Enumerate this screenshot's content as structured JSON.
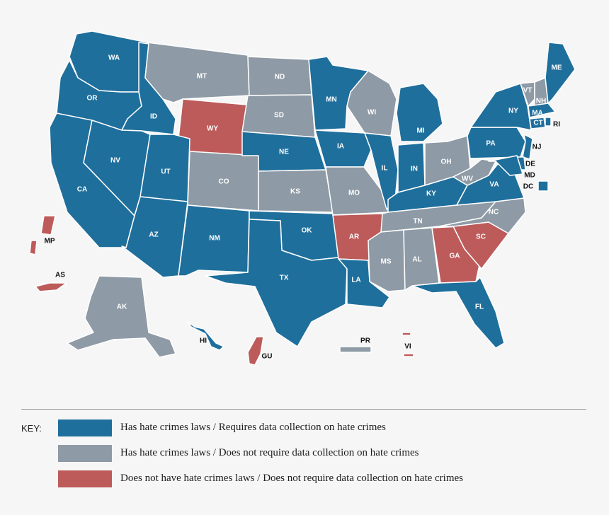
{
  "colors": {
    "blue": "#1f6f9c",
    "gray": "#8e9aa5",
    "red": "#bd5b5b"
  },
  "states": [
    {
      "code": "WA",
      "cat": "blue"
    },
    {
      "code": "OR",
      "cat": "blue"
    },
    {
      "code": "CA",
      "cat": "blue"
    },
    {
      "code": "ID",
      "cat": "blue"
    },
    {
      "code": "NV",
      "cat": "blue"
    },
    {
      "code": "MT",
      "cat": "gray"
    },
    {
      "code": "WY",
      "cat": "red"
    },
    {
      "code": "UT",
      "cat": "blue"
    },
    {
      "code": "AZ",
      "cat": "blue"
    },
    {
      "code": "CO",
      "cat": "gray"
    },
    {
      "code": "NM",
      "cat": "blue"
    },
    {
      "code": "ND",
      "cat": "gray"
    },
    {
      "code": "SD",
      "cat": "gray"
    },
    {
      "code": "NE",
      "cat": "blue"
    },
    {
      "code": "KS",
      "cat": "gray"
    },
    {
      "code": "OK",
      "cat": "blue"
    },
    {
      "code": "TX",
      "cat": "blue"
    },
    {
      "code": "MN",
      "cat": "blue"
    },
    {
      "code": "IA",
      "cat": "blue"
    },
    {
      "code": "MO",
      "cat": "gray"
    },
    {
      "code": "AR",
      "cat": "red"
    },
    {
      "code": "LA",
      "cat": "blue"
    },
    {
      "code": "WI",
      "cat": "gray"
    },
    {
      "code": "IL",
      "cat": "blue"
    },
    {
      "code": "MI",
      "cat": "blue"
    },
    {
      "code": "IN",
      "cat": "blue"
    },
    {
      "code": "OH",
      "cat": "gray"
    },
    {
      "code": "KY",
      "cat": "blue"
    },
    {
      "code": "TN",
      "cat": "gray"
    },
    {
      "code": "MS",
      "cat": "gray"
    },
    {
      "code": "AL",
      "cat": "gray"
    },
    {
      "code": "GA",
      "cat": "red"
    },
    {
      "code": "FL",
      "cat": "blue"
    },
    {
      "code": "SC",
      "cat": "red"
    },
    {
      "code": "NC",
      "cat": "gray"
    },
    {
      "code": "VA",
      "cat": "blue"
    },
    {
      "code": "WV",
      "cat": "gray"
    },
    {
      "code": "PA",
      "cat": "blue"
    },
    {
      "code": "NY",
      "cat": "blue"
    },
    {
      "code": "VT",
      "cat": "gray"
    },
    {
      "code": "NH",
      "cat": "gray"
    },
    {
      "code": "ME",
      "cat": "blue"
    },
    {
      "code": "MA",
      "cat": "blue"
    },
    {
      "code": "RI",
      "cat": "blue"
    },
    {
      "code": "CT",
      "cat": "blue"
    },
    {
      "code": "NJ",
      "cat": "blue"
    },
    {
      "code": "DE",
      "cat": "blue"
    },
    {
      "code": "MD",
      "cat": "blue"
    },
    {
      "code": "DC",
      "cat": "blue"
    },
    {
      "code": "AK",
      "cat": "gray"
    },
    {
      "code": "HI",
      "cat": "blue"
    },
    {
      "code": "MP",
      "cat": "red"
    },
    {
      "code": "AS",
      "cat": "red"
    },
    {
      "code": "GU",
      "cat": "red"
    },
    {
      "code": "PR",
      "cat": "gray"
    },
    {
      "code": "VI",
      "cat": "red"
    }
  ],
  "key": {
    "title": "KEY:",
    "items": [
      {
        "cat": "blue",
        "label": "Has hate crimes laws / Requires data collection on hate crimes"
      },
      {
        "cat": "gray",
        "label": "Has hate crimes laws / Does not require data collection on hate crimes"
      },
      {
        "cat": "red",
        "label": "Does not have hate crimes laws / Does not require data collection on hate crimes"
      }
    ]
  }
}
